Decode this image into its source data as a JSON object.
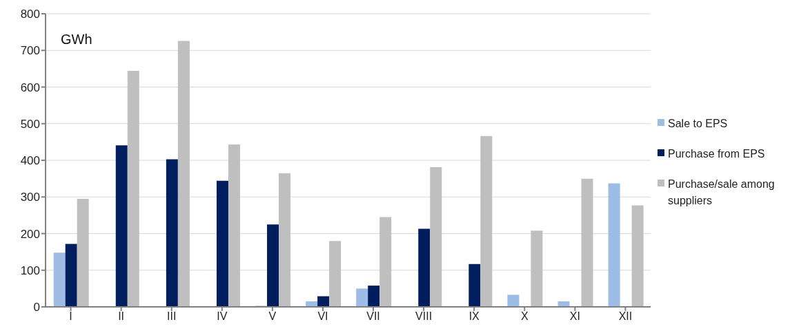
{
  "chart_data": {
    "type": "bar",
    "annotations": [
      "GWh"
    ],
    "categories": [
      "I",
      "II",
      "III",
      "IV",
      "V",
      "VI",
      "VII",
      "VIII",
      "IX",
      "X",
      "XI",
      "XII"
    ],
    "series": [
      {
        "name": "Sale to EPS",
        "color": "#9dbde6",
        "values": [
          148,
          0,
          0,
          0,
          3,
          15,
          50,
          0,
          0,
          33,
          15,
          337
        ]
      },
      {
        "name": "Purchase from EPS",
        "color": "#001e5e",
        "values": [
          172,
          441,
          403,
          344,
          225,
          29,
          58,
          213,
          117,
          0,
          0,
          0
        ]
      },
      {
        "name": "Purchase/sale among suppliers",
        "color": "#bfbfbf",
        "values": [
          295,
          644,
          726,
          443,
          365,
          180,
          245,
          381,
          466,
          208,
          350,
          277
        ]
      }
    ],
    "ylim": [
      0,
      800
    ],
    "yticks": [
      0,
      100,
      200,
      300,
      400,
      500,
      600,
      700,
      800
    ],
    "grid": "y",
    "legend": "right"
  }
}
